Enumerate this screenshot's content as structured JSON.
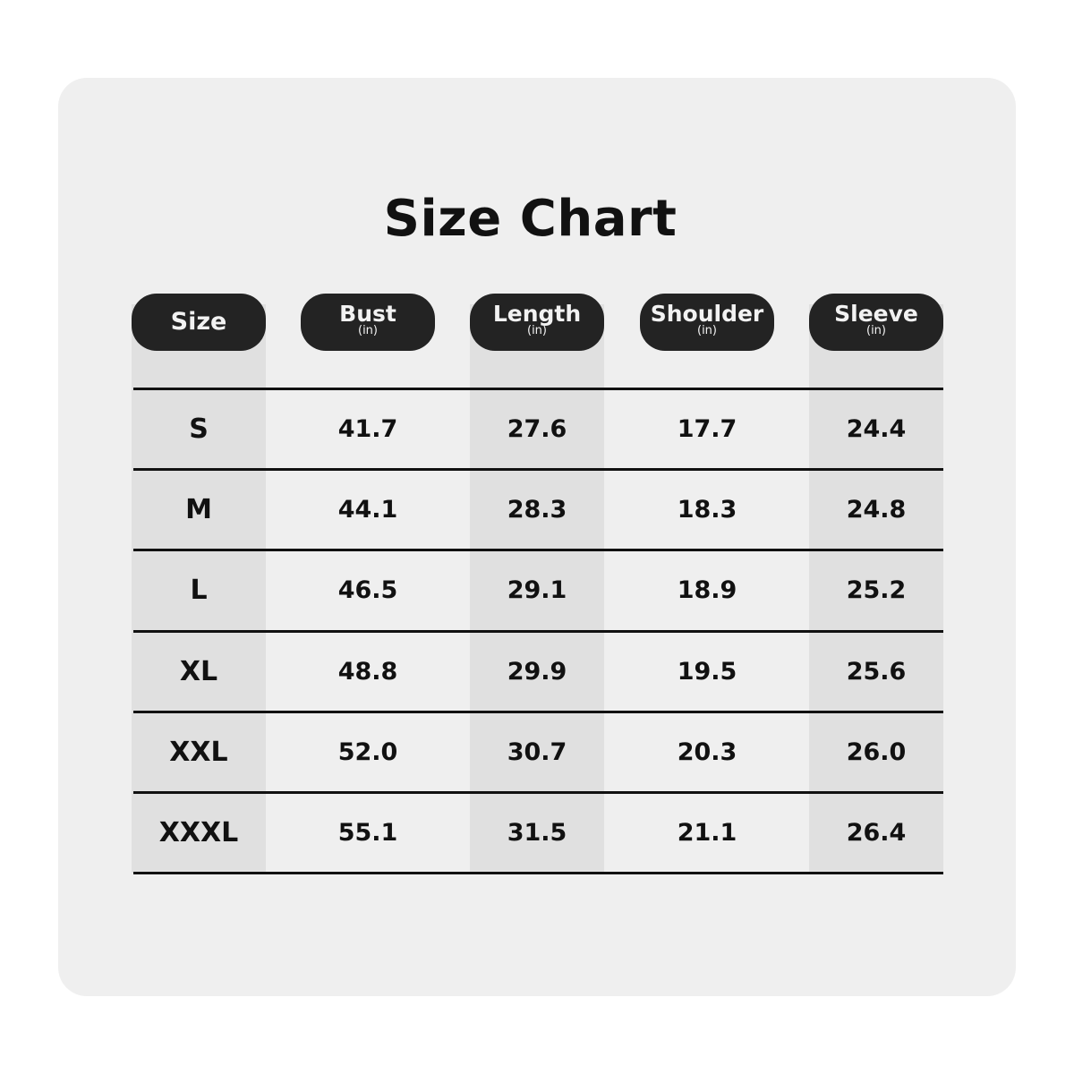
{
  "chart_data": {
    "type": "table",
    "title": "Size Chart",
    "columns": [
      {
        "label": "Size",
        "unit": ""
      },
      {
        "label": "Bust",
        "unit": "(in)"
      },
      {
        "label": "Length",
        "unit": "(in)"
      },
      {
        "label": "Shoulder",
        "unit": "(in)"
      },
      {
        "label": "Sleeve",
        "unit": "(in)"
      }
    ],
    "rows": [
      [
        "S",
        "41.7",
        "27.6",
        "17.7",
        "24.4"
      ],
      [
        "M",
        "44.1",
        "28.3",
        "18.3",
        "24.8"
      ],
      [
        "L",
        "46.5",
        "29.1",
        "18.9",
        "25.2"
      ],
      [
        "XL",
        "48.8",
        "29.9",
        "19.5",
        "25.6"
      ],
      [
        "XXL",
        "52.0",
        "30.7",
        "20.3",
        "26.0"
      ],
      [
        "XXXL",
        "55.1",
        "31.5",
        "21.1",
        "26.4"
      ]
    ],
    "colors": {
      "header_bg": "#232323",
      "card_bg": "#efefef",
      "stripe": "#e0e0e0"
    }
  }
}
